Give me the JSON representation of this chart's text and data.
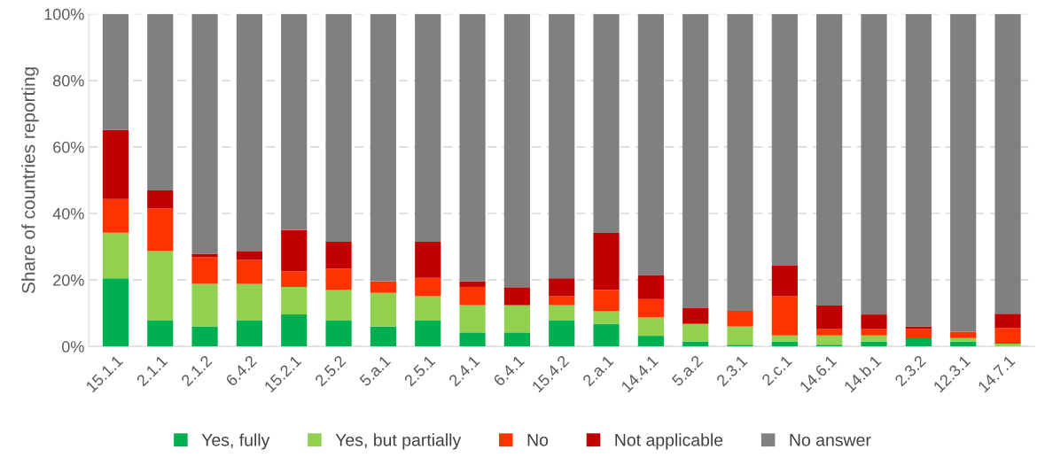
{
  "chart_data": {
    "type": "bar",
    "stacked": true,
    "ylabel": "Share of countries reporting",
    "categories": [
      "15.1.1",
      "2.1.1",
      "2.1.2",
      "6.4.2",
      "15.2.1",
      "2.5.2",
      "5.a.1",
      "2.5.1",
      "2.4.1",
      "6.4.1",
      "15.4.2",
      "2.a.1",
      "14.4.1",
      "5.a.2",
      "2.3.1",
      "2.c.1",
      "14.6.1",
      "14.b.1",
      "2.3.2",
      "12.3.1",
      "14.7.1"
    ],
    "series": [
      {
        "name": "Yes, fully",
        "color": "#00b050",
        "values": [
          20.5,
          7.9,
          6.0,
          7.9,
          9.6,
          7.9,
          6.0,
          7.9,
          4.2,
          4.2,
          7.9,
          6.8,
          3.2,
          1.5,
          0.5,
          1.5,
          0.5,
          1.5,
          2.4,
          1.5,
          0
        ]
      },
      {
        "name": "Yes, but partially",
        "color": "#92d050",
        "values": [
          13.7,
          20.8,
          12.8,
          10.9,
          8.3,
          9.1,
          10.1,
          7.2,
          8.2,
          8.2,
          4.5,
          3.8,
          5.5,
          5.3,
          5.5,
          1.8,
          2.8,
          1.8,
          0,
          1.0,
          0.8
        ]
      },
      {
        "name": "No",
        "color": "#ff3300",
        "values": [
          10.1,
          12.8,
          8.0,
          7.2,
          4.7,
          6.4,
          3.5,
          5.5,
          5.5,
          0,
          2.7,
          6.4,
          5.5,
          0,
          4.7,
          11.8,
          1.9,
          1.9,
          2.8,
          1.9,
          4.7
        ]
      },
      {
        "name": "Not applicable",
        "color": "#c00000",
        "values": [
          20.8,
          5.4,
          1.1,
          2.7,
          12.4,
          8.1,
          0,
          10.9,
          1.7,
          5.4,
          5.4,
          17.1,
          7.3,
          4.7,
          0,
          9.2,
          7.1,
          4.4,
          0.8,
          0,
          4.3
        ]
      },
      {
        "name": "No answer",
        "color": "#808080",
        "values": [
          34.9,
          53.1,
          72.1,
          71.3,
          65.0,
          68.5,
          80.4,
          68.5,
          80.4,
          82.2,
          79.5,
          65.9,
          78.5,
          88.5,
          89.3,
          75.7,
          87.7,
          90.4,
          94.0,
          95.6,
          90.2
        ]
      }
    ],
    "ylim": [
      0,
      100
    ],
    "yticks": [
      {
        "value": 0,
        "label": "0%"
      },
      {
        "value": 20,
        "label": "20%"
      },
      {
        "value": 40,
        "label": "40%"
      },
      {
        "value": 60,
        "label": "60%"
      },
      {
        "value": 80,
        "label": "80%"
      },
      {
        "value": 100,
        "label": "100%"
      }
    ],
    "grid": "y",
    "legend": "bottom"
  }
}
